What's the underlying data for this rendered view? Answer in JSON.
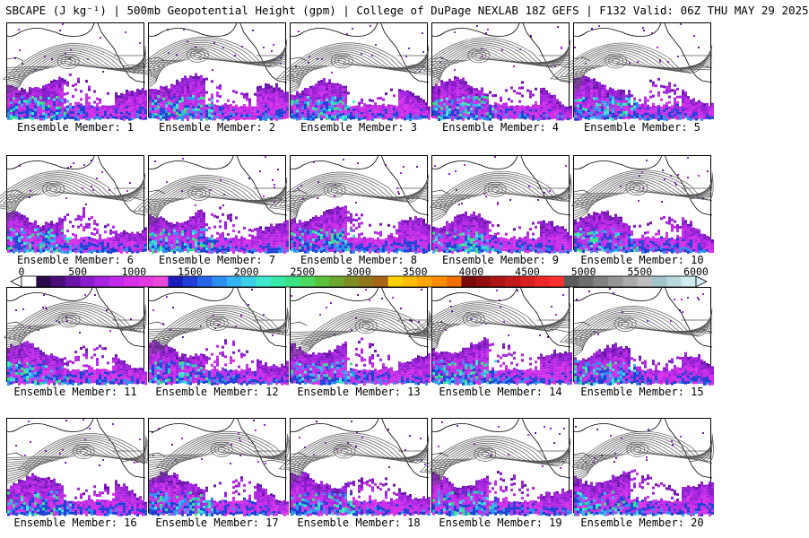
{
  "title": "SBCAPE (J kg⁻¹) | 500mb Geopotential Height (gpm) | College of DuPage NEXLAB 18Z GEFS | F132 Valid: 06Z THU MAY 29 2025",
  "field": "SBCAPE",
  "overlay": "500mb Geopotential Height",
  "panels": [
    {
      "label": "Ensemble Member: 1"
    },
    {
      "label": "Ensemble Member: 2"
    },
    {
      "label": "Ensemble Member: 3"
    },
    {
      "label": "Ensemble Member: 4"
    },
    {
      "label": "Ensemble Member: 5"
    },
    {
      "label": "Ensemble Member: 6"
    },
    {
      "label": "Ensemble Member: 7"
    },
    {
      "label": "Ensemble Member: 8"
    },
    {
      "label": "Ensemble Member: 9"
    },
    {
      "label": "Ensemble Member: 10"
    },
    {
      "label": "Ensemble Member: 11"
    },
    {
      "label": "Ensemble Member: 12"
    },
    {
      "label": "Ensemble Member: 13"
    },
    {
      "label": "Ensemble Member: 14"
    },
    {
      "label": "Ensemble Member: 15"
    },
    {
      "label": "Ensemble Member: 16"
    },
    {
      "label": "Ensemble Member: 17"
    },
    {
      "label": "Ensemble Member: 18"
    },
    {
      "label": "Ensemble Member: 19"
    },
    {
      "label": "Ensemble Member: 20"
    }
  ],
  "colorbar": {
    "ticks": [
      "0",
      "500",
      "1000",
      "1500",
      "2000",
      "2500",
      "3000",
      "3500",
      "4000",
      "4500",
      "5000",
      "5500",
      "6000"
    ],
    "min": 0,
    "max": 6000,
    "colors": [
      "#ffffff",
      "#2a0a4a",
      "#4b0d7a",
      "#6a14a8",
      "#8b1ccc",
      "#a623e0",
      "#c02ae8",
      "#d631e8",
      "#e23ae2",
      "#ea48d8",
      "#1c1cb8",
      "#1f3fd6",
      "#2566e8",
      "#2b8ef0",
      "#34b2f2",
      "#3dcfe8",
      "#3ee8d0",
      "#37e8a8",
      "#3ae084",
      "#4ad860",
      "#5ac33c",
      "#6ca82e",
      "#7f8e24",
      "#92781c",
      "#a86418",
      "#ffd000",
      "#ffbc00",
      "#ffa400",
      "#ff8c00",
      "#f07000",
      "#7a0a0a",
      "#920e0e",
      "#aa1414",
      "#c21a1a",
      "#d82020",
      "#ee2828",
      "#ff3030",
      "#5a5a5a",
      "#6e6e6e",
      "#828282",
      "#969696",
      "#aaaaaa",
      "#bebebe",
      "#a0c4c8",
      "#b8d8dc",
      "#d0ecf0"
    ]
  }
}
